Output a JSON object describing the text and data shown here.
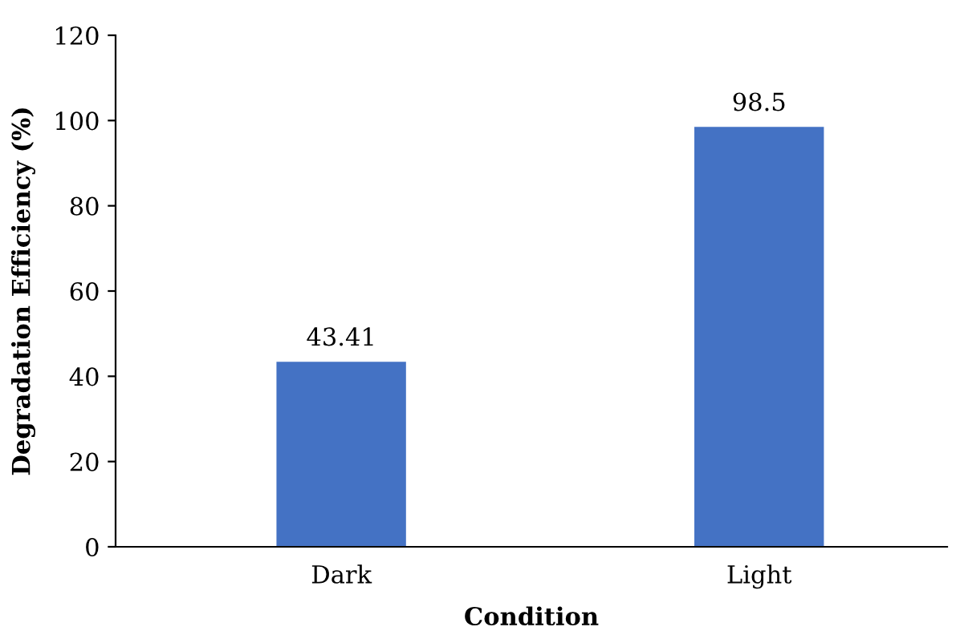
{
  "chart_data": {
    "type": "bar",
    "xlabel": "Condition",
    "ylabel": "Degradation Efficiency (%)",
    "categories": [
      "Dark",
      "Light"
    ],
    "values": [
      43.41,
      98.5
    ],
    "color": "#4472c4",
    "ylim": [
      0,
      120
    ],
    "yticks": [
      0,
      20,
      40,
      60,
      80,
      100,
      120
    ],
    "grid": false,
    "data_labels": true
  }
}
